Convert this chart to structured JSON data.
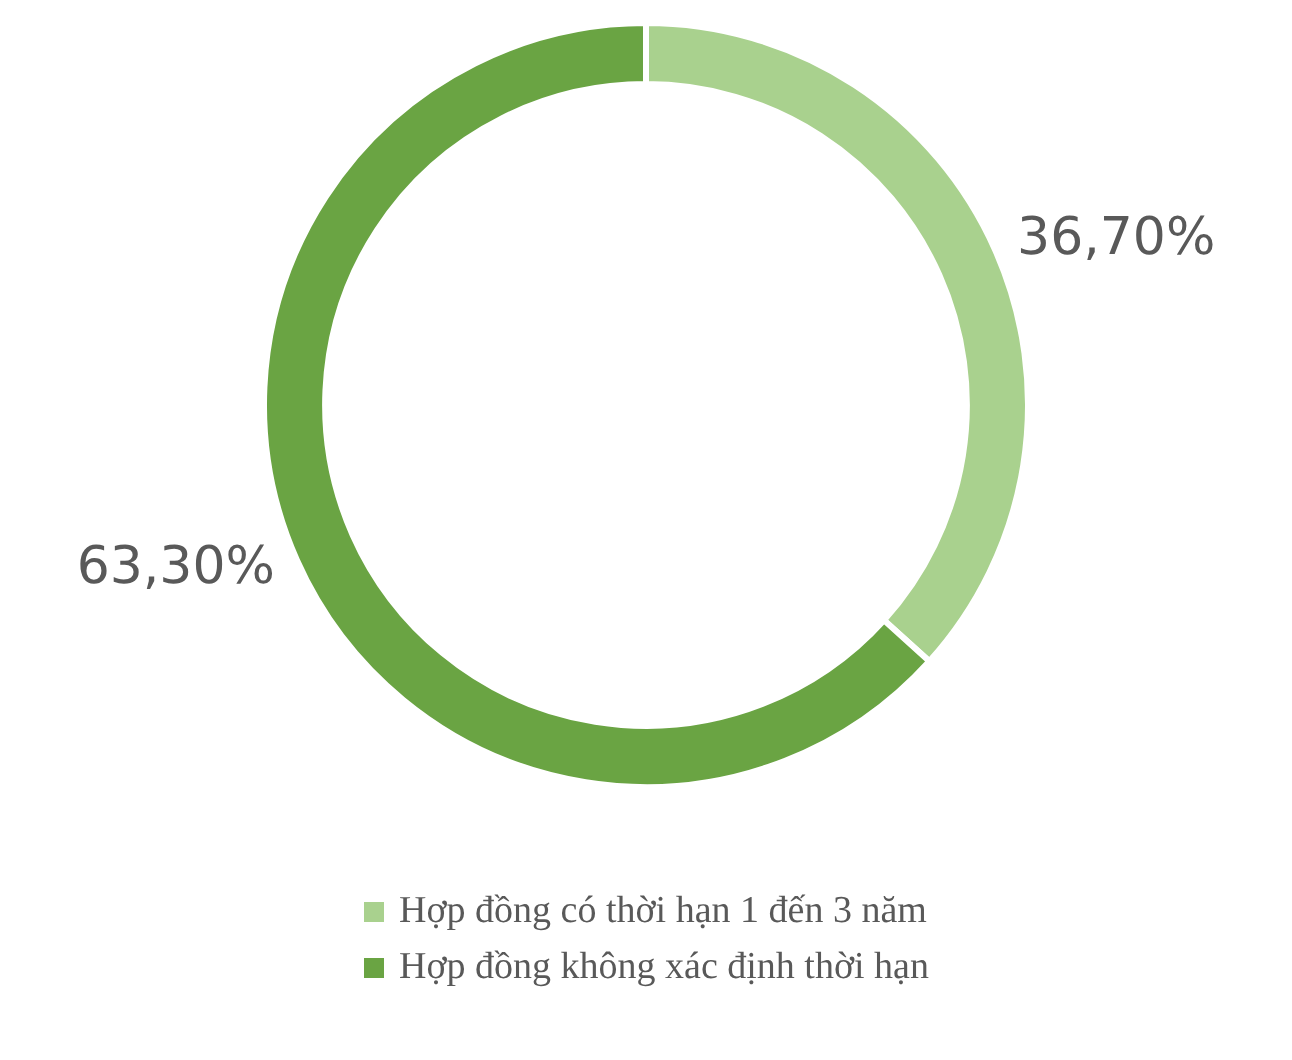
{
  "chart_data": {
    "type": "donut",
    "categories": [
      "Hợp đồng có thời hạn 1 đến 3 năm",
      "Hợp đồng không xác định thời hạn"
    ],
    "values": [
      36.7,
      63.3
    ],
    "colors": [
      "#a9d18e",
      "#6aa443"
    ],
    "value_labels": [
      "36,70%",
      "63,30%"
    ],
    "legend": "bottom"
  }
}
